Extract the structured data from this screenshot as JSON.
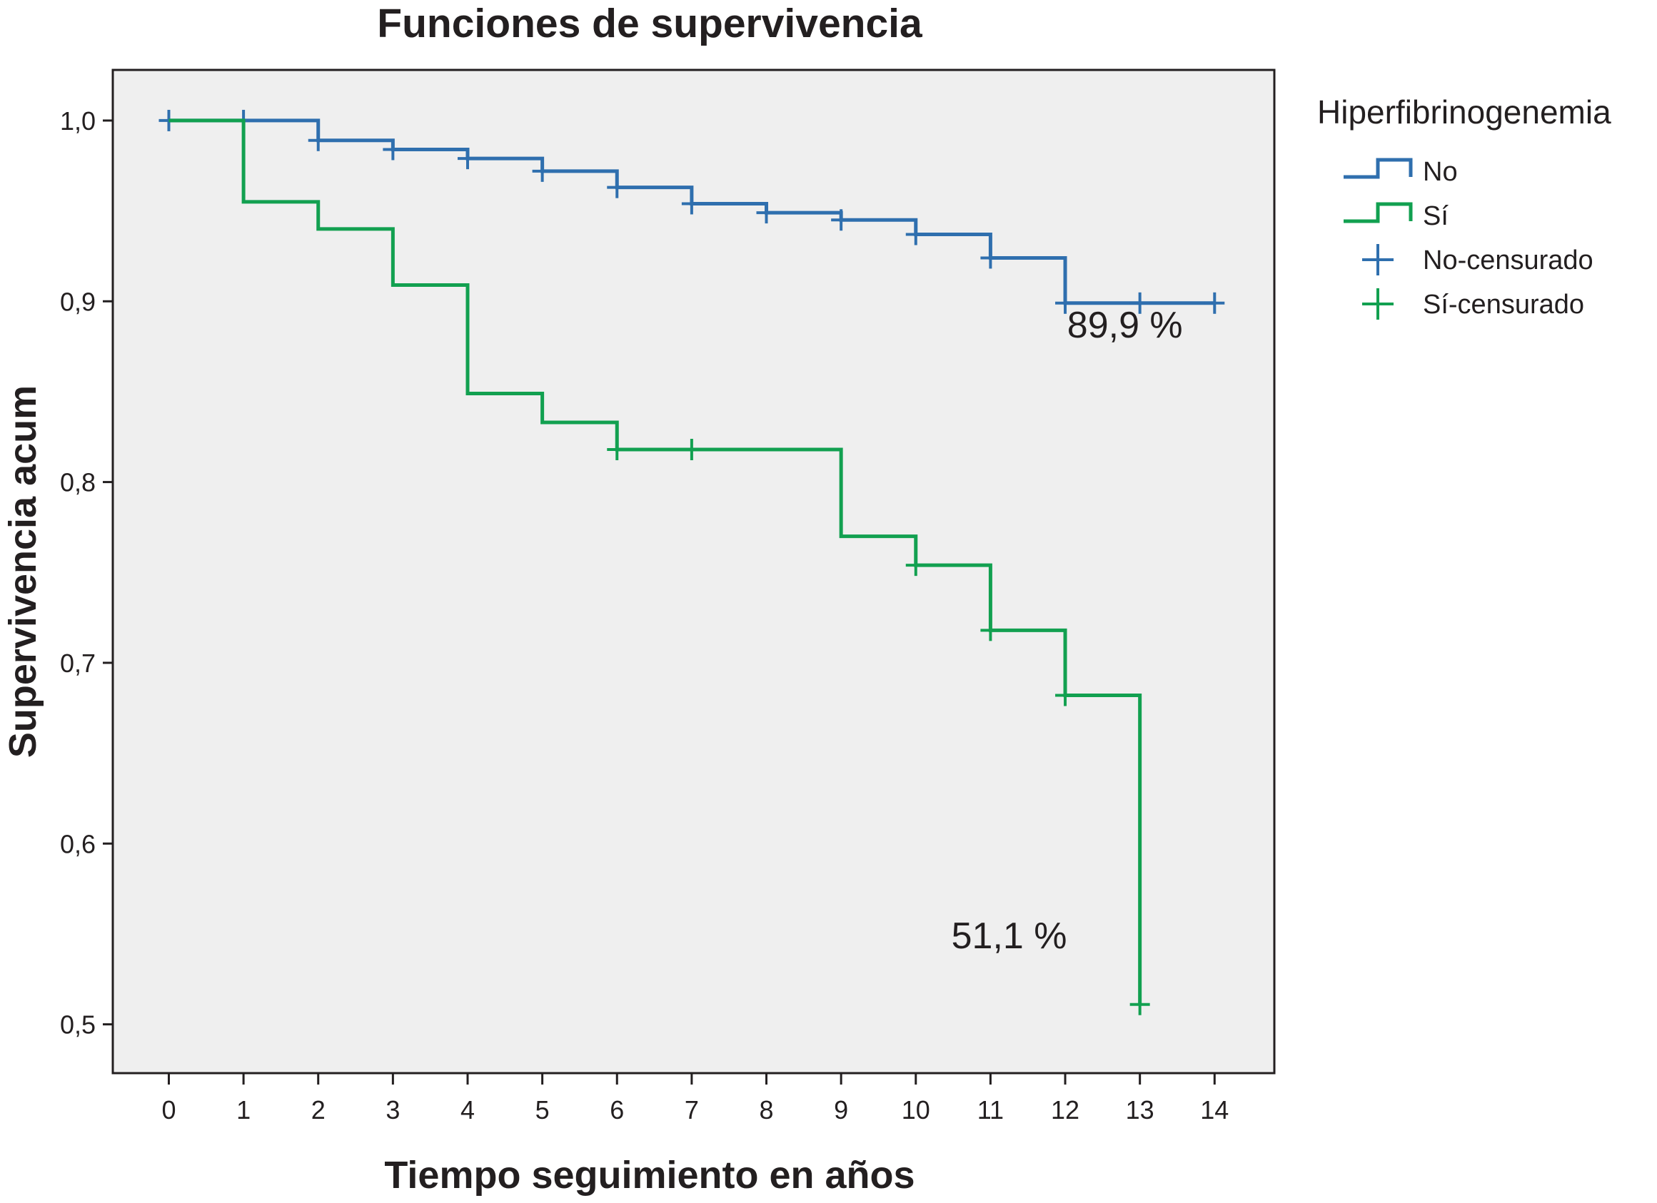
{
  "chart_data": {
    "type": "line",
    "title": "Funciones de supervivencia",
    "xlabel": "Tiempo seguimiento en años",
    "ylabel": "Supervivencia acum",
    "xlim": [
      -0.75,
      14.8
    ],
    "ylim": [
      0.473,
      1.028
    ],
    "x_ticks": [
      0,
      1,
      2,
      3,
      4,
      5,
      6,
      7,
      8,
      9,
      10,
      11,
      12,
      13,
      14
    ],
    "x_tick_labels": [
      "0",
      "1",
      "2",
      "3",
      "4",
      "5",
      "6",
      "7",
      "8",
      "9",
      "10",
      "11",
      "12",
      "13",
      "14"
    ],
    "y_ticks": [
      0.5,
      0.6,
      0.7,
      0.8,
      0.9,
      1.0
    ],
    "y_tick_labels": [
      "0,5",
      "0,6",
      "0,7",
      "0,8",
      "0,9",
      "1,0"
    ],
    "grid": false,
    "legend_title": "Hiperfibrinogenemia",
    "legend_position": "right",
    "series": [
      {
        "name": "No",
        "color": "#2f6fae",
        "steps": [
          [
            0,
            1.0
          ],
          [
            2,
            0.989
          ],
          [
            3,
            0.984
          ],
          [
            4,
            0.979
          ],
          [
            5,
            0.972
          ],
          [
            6,
            0.963
          ],
          [
            7,
            0.954
          ],
          [
            8,
            0.949
          ],
          [
            9,
            0.945
          ],
          [
            10,
            0.937
          ],
          [
            11,
            0.924
          ],
          [
            12,
            0.899
          ],
          [
            14,
            0.899
          ]
        ],
        "censored": [
          [
            0,
            1.0
          ],
          [
            1,
            1.0
          ],
          [
            2,
            0.989
          ],
          [
            3,
            0.984
          ],
          [
            4,
            0.979
          ],
          [
            5,
            0.972
          ],
          [
            6,
            0.963
          ],
          [
            7,
            0.954
          ],
          [
            8,
            0.949
          ],
          [
            9,
            0.945
          ],
          [
            10,
            0.937
          ],
          [
            11,
            0.924
          ],
          [
            12,
            0.899
          ],
          [
            13,
            0.899
          ],
          [
            14,
            0.899
          ]
        ]
      },
      {
        "name": "Sí",
        "color": "#12a050",
        "steps": [
          [
            0,
            1.0
          ],
          [
            1,
            0.955
          ],
          [
            2,
            0.94
          ],
          [
            3,
            0.909
          ],
          [
            4,
            0.849
          ],
          [
            5,
            0.833
          ],
          [
            6,
            0.818
          ],
          [
            9,
            0.77
          ],
          [
            10,
            0.754
          ],
          [
            11,
            0.718
          ],
          [
            12,
            0.682
          ],
          [
            13,
            0.511
          ]
        ],
        "censored": [
          [
            6,
            0.818
          ],
          [
            7,
            0.818
          ],
          [
            10,
            0.754
          ],
          [
            11,
            0.718
          ],
          [
            12,
            0.682
          ],
          [
            13,
            0.511
          ]
        ]
      }
    ],
    "legend_items": [
      "No",
      "Sí",
      "No-censurado",
      "Sí-censurado"
    ],
    "annotations": [
      {
        "text": "89,9 %",
        "x": 12.8,
        "y": 0.88
      },
      {
        "text": "51,1 %",
        "x": 11.25,
        "y": 0.542
      }
    ]
  }
}
